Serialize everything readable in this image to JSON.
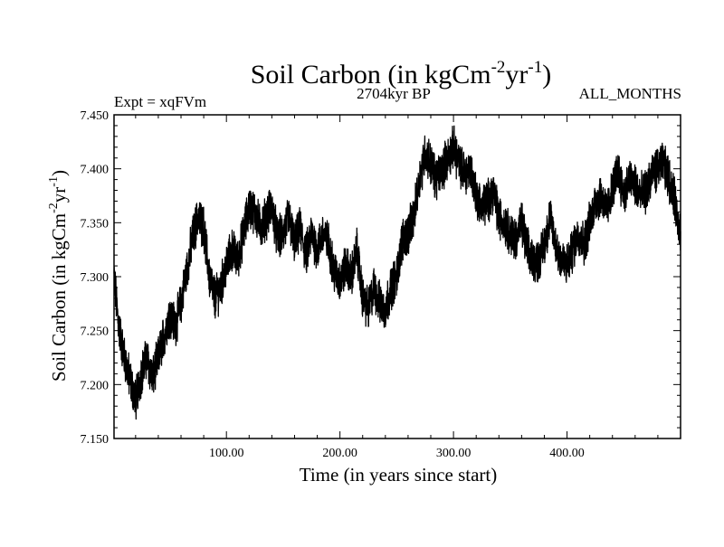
{
  "chart_data": {
    "type": "line",
    "title": {
      "main": "Soil Carbon (in kgCm",
      "sup1": "-2",
      "mid": "yr",
      "sup2": "-1",
      "end": ")"
    },
    "subtitle_left": "Expt = xqFVm",
    "subtitle_center": "2704kyr BP",
    "subtitle_right": "ALL_MONTHS",
    "xlabel": "Time (in years since start)",
    "ylabel": {
      "main": "Soil Carbon (in kgCm",
      "sup1": "-2",
      "mid": "yr",
      "sup2": "-1",
      "end": ")"
    },
    "xlim": [
      1,
      500
    ],
    "ylim": [
      7.15,
      7.45
    ],
    "x_ticks": [
      {
        "value": 100,
        "label": "100.00"
      },
      {
        "value": 200,
        "label": "200.00"
      },
      {
        "value": 300,
        "label": "300.00"
      },
      {
        "value": 400,
        "label": "400.00"
      }
    ],
    "y_ticks": [
      {
        "value": 7.15,
        "label": "7.150"
      },
      {
        "value": 7.2,
        "label": "7.200"
      },
      {
        "value": 7.25,
        "label": "7.250"
      },
      {
        "value": 7.3,
        "label": "7.300"
      },
      {
        "value": 7.35,
        "label": "7.350"
      },
      {
        "value": 7.4,
        "label": "7.400"
      },
      {
        "value": 7.45,
        "label": "7.450"
      }
    ],
    "series": [
      {
        "name": "Soil Carbon",
        "color": "#000000",
        "x": [
          1,
          5,
          10,
          15,
          20,
          25,
          30,
          35,
          40,
          45,
          50,
          55,
          60,
          65,
          70,
          75,
          80,
          85,
          90,
          95,
          100,
          105,
          110,
          115,
          120,
          125,
          130,
          135,
          140,
          145,
          150,
          155,
          160,
          165,
          170,
          175,
          180,
          185,
          190,
          195,
          200,
          205,
          210,
          215,
          220,
          225,
          230,
          235,
          240,
          245,
          250,
          255,
          260,
          265,
          270,
          275,
          280,
          285,
          290,
          295,
          300,
          305,
          310,
          315,
          320,
          325,
          330,
          335,
          340,
          345,
          350,
          355,
          360,
          365,
          370,
          375,
          380,
          385,
          390,
          395,
          400,
          405,
          410,
          415,
          420,
          425,
          430,
          435,
          440,
          445,
          450,
          455,
          460,
          465,
          470,
          475,
          480,
          485,
          490,
          495,
          500
        ],
        "y": [
          7.3,
          7.255,
          7.225,
          7.205,
          7.185,
          7.21,
          7.225,
          7.205,
          7.225,
          7.245,
          7.265,
          7.255,
          7.275,
          7.305,
          7.335,
          7.355,
          7.345,
          7.3,
          7.28,
          7.29,
          7.31,
          7.325,
          7.315,
          7.34,
          7.365,
          7.36,
          7.345,
          7.355,
          7.365,
          7.335,
          7.34,
          7.355,
          7.33,
          7.345,
          7.32,
          7.34,
          7.325,
          7.34,
          7.33,
          7.305,
          7.295,
          7.31,
          7.3,
          7.325,
          7.28,
          7.27,
          7.29,
          7.275,
          7.27,
          7.29,
          7.3,
          7.335,
          7.34,
          7.355,
          7.39,
          7.415,
          7.405,
          7.39,
          7.4,
          7.41,
          7.42,
          7.405,
          7.395,
          7.4,
          7.375,
          7.365,
          7.37,
          7.38,
          7.355,
          7.35,
          7.34,
          7.335,
          7.35,
          7.325,
          7.315,
          7.315,
          7.33,
          7.355,
          7.33,
          7.315,
          7.31,
          7.325,
          7.34,
          7.33,
          7.35,
          7.37,
          7.375,
          7.36,
          7.38,
          7.4,
          7.375,
          7.39,
          7.385,
          7.375,
          7.38,
          7.395,
          7.4,
          7.405,
          7.39,
          7.37,
          7.34
        ]
      }
    ]
  }
}
